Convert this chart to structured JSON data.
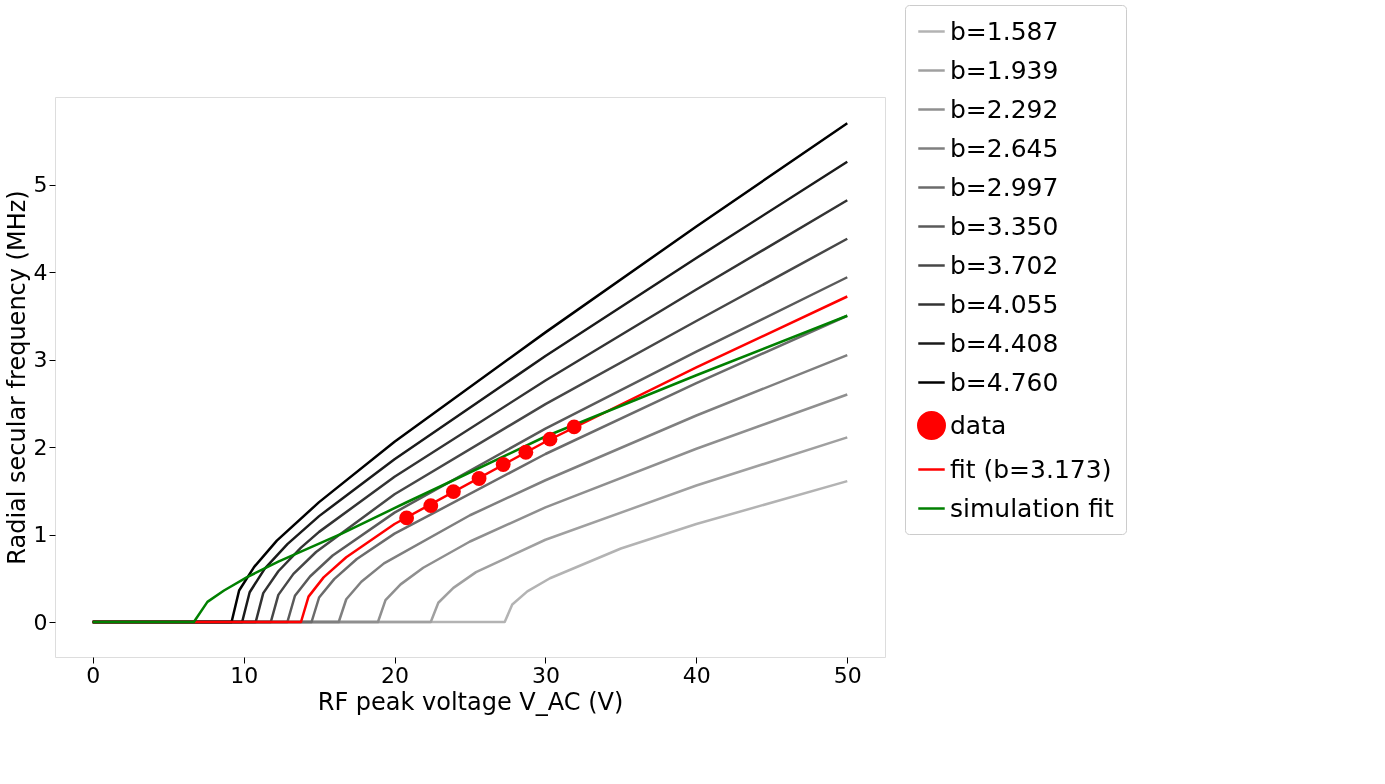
{
  "chart_data": {
    "type": "line",
    "xlabel": "RF peak voltage V_AC (V)",
    "ylabel": "Radial secular frequency (MHz)",
    "xlim": [
      -2.5,
      52.5
    ],
    "ylim": [
      -0.4,
      6.0
    ],
    "xticks": [
      0,
      10,
      20,
      30,
      40,
      50
    ],
    "yticks": [
      0,
      1,
      2,
      3,
      4,
      5
    ],
    "grid": false,
    "legend": "right",
    "line_style": "solid",
    "series": [
      {
        "name": "b=1.587",
        "color": "#b3b3b3",
        "x": [
          0,
          27.3,
          27.8,
          28.8,
          30.3,
          35,
          40,
          50
        ],
        "values": [
          0,
          0,
          0.2,
          0.35,
          0.5,
          0.84,
          1.12,
          1.61
        ]
      },
      {
        "name": "b=1.939",
        "color": "#a0a0a0",
        "x": [
          0,
          22.4,
          22.9,
          23.9,
          25.4,
          30,
          40,
          50
        ],
        "values": [
          0,
          0,
          0.22,
          0.39,
          0.57,
          0.94,
          1.56,
          2.11
        ]
      },
      {
        "name": "b=2.292",
        "color": "#8f8f8f",
        "x": [
          0,
          18.9,
          19.4,
          20.4,
          21.9,
          25,
          30,
          40,
          50
        ],
        "values": [
          0,
          0,
          0.25,
          0.43,
          0.62,
          0.92,
          1.31,
          1.98,
          2.6
        ]
      },
      {
        "name": "b=2.645",
        "color": "#7f7f7f",
        "x": [
          0,
          16.3,
          16.8,
          17.8,
          19.3,
          25,
          30,
          40,
          50
        ],
        "values": [
          0,
          0,
          0.26,
          0.46,
          0.67,
          1.22,
          1.62,
          2.36,
          3.05
        ]
      },
      {
        "name": "b=2.997",
        "color": "#6b6b6b",
        "x": [
          0,
          14.5,
          15,
          16,
          17.5,
          20,
          30,
          40,
          50
        ],
        "values": [
          0,
          0,
          0.28,
          0.49,
          0.72,
          1.01,
          1.92,
          2.73,
          3.5
        ]
      },
      {
        "name": "b=3.350",
        "color": "#5a5a5a",
        "x": [
          0,
          12.9,
          13.4,
          14.4,
          15.9,
          20,
          30,
          40,
          50
        ],
        "values": [
          0,
          0,
          0.3,
          0.52,
          0.76,
          1.25,
          2.21,
          3.09,
          3.94
        ]
      },
      {
        "name": "b=3.702",
        "color": "#474747",
        "x": [
          0,
          11.8,
          12.3,
          13.3,
          14.8,
          20,
          30,
          40,
          50
        ],
        "values": [
          0,
          0,
          0.31,
          0.55,
          0.8,
          1.46,
          2.49,
          3.44,
          4.38
        ]
      },
      {
        "name": "b=4.055",
        "color": "#333333",
        "x": [
          0,
          10.8,
          11.3,
          12.3,
          13.8,
          15,
          20,
          30,
          40,
          50
        ],
        "values": [
          0,
          0,
          0.33,
          0.58,
          0.85,
          1.03,
          1.66,
          2.76,
          3.8,
          4.82
        ]
      },
      {
        "name": "b=4.408",
        "color": "#1a1a1a",
        "x": [
          0,
          9.9,
          10.4,
          11.4,
          12.9,
          15,
          20,
          30,
          40,
          50
        ],
        "values": [
          0,
          0,
          0.34,
          0.61,
          0.89,
          1.21,
          1.86,
          3.04,
          4.16,
          5.26
        ]
      },
      {
        "name": "b=4.760",
        "color": "#000000",
        "x": [
          0,
          9.2,
          9.7,
          10.7,
          12.2,
          15,
          20,
          30,
          40,
          50
        ],
        "values": [
          0,
          0,
          0.36,
          0.63,
          0.93,
          1.37,
          2.06,
          3.31,
          4.52,
          5.7
        ]
      },
      {
        "name": "data",
        "color": "#ff0000",
        "type": "scatter",
        "marker": "circle",
        "x": [
          20.8,
          22.4,
          23.9,
          25.6,
          27.2,
          28.7,
          30.3,
          31.9
        ],
        "values": [
          1.19,
          1.33,
          1.49,
          1.64,
          1.8,
          1.94,
          2.09,
          2.23
        ]
      },
      {
        "name": "fit (b=3.173)",
        "color": "#ff0000",
        "x": [
          0,
          13.8,
          14.3,
          15.3,
          16.8,
          20,
          30,
          40,
          50
        ],
        "values": [
          0,
          0,
          0.29,
          0.51,
          0.74,
          1.12,
          2.06,
          2.91,
          3.72
        ]
      },
      {
        "name": "simulation fit",
        "color": "#008000",
        "x": [
          0,
          6.7,
          7.6,
          8.7,
          10.2,
          12.3,
          16.5,
          20.7,
          23.9,
          30,
          40,
          50
        ],
        "values": [
          0,
          0,
          0.23,
          0.36,
          0.51,
          0.69,
          1.01,
          1.36,
          1.62,
          2.12,
          2.82,
          3.5
        ]
      }
    ]
  }
}
